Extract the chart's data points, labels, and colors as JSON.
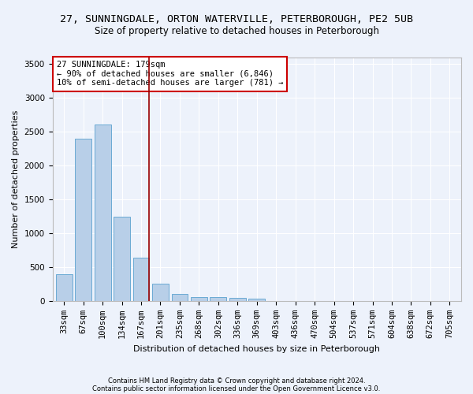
{
  "title": "27, SUNNINGDALE, ORTON WATERVILLE, PETERBOROUGH, PE2 5UB",
  "subtitle": "Size of property relative to detached houses in Peterborough",
  "xlabel": "Distribution of detached houses by size in Peterborough",
  "ylabel": "Number of detached properties",
  "footnote1": "Contains HM Land Registry data © Crown copyright and database right 2024.",
  "footnote2": "Contains public sector information licensed under the Open Government Licence v3.0.",
  "categories": [
    "33sqm",
    "67sqm",
    "100sqm",
    "134sqm",
    "167sqm",
    "201sqm",
    "235sqm",
    "268sqm",
    "302sqm",
    "336sqm",
    "369sqm",
    "403sqm",
    "436sqm",
    "470sqm",
    "504sqm",
    "537sqm",
    "571sqm",
    "604sqm",
    "638sqm",
    "672sqm",
    "705sqm"
  ],
  "values": [
    390,
    2400,
    2600,
    1240,
    640,
    260,
    100,
    60,
    55,
    45,
    35,
    0,
    0,
    0,
    0,
    0,
    0,
    0,
    0,
    0,
    0
  ],
  "bar_color": "#b8cfe8",
  "bar_edge_color": "#6aaad4",
  "vline_index": 4.42,
  "vline_color": "#990000",
  "ylim": [
    0,
    3600
  ],
  "yticks": [
    0,
    500,
    1000,
    1500,
    2000,
    2500,
    3000,
    3500
  ],
  "annotation_text": "27 SUNNINGDALE: 179sqm\n← 90% of detached houses are smaller (6,846)\n10% of semi-detached houses are larger (781) →",
  "annotation_box_facecolor": "#ffffff",
  "annotation_box_edgecolor": "#cc0000",
  "background_color": "#edf2fb",
  "grid_color": "#ffffff",
  "title_fontsize": 9.5,
  "subtitle_fontsize": 8.5,
  "axis_fontsize": 7.5,
  "ylabel_fontsize": 8,
  "xlabel_fontsize": 8,
  "annot_fontsize": 7.5,
  "footnote_fontsize": 6
}
